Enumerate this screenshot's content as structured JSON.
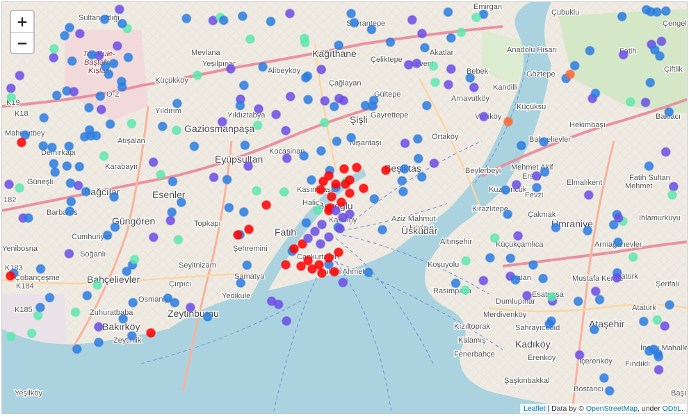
{
  "controls": {
    "zoom_in": "+",
    "zoom_out": "−"
  },
  "attribution": {
    "leaflet": "Leaflet",
    "sep": " | Data by © ",
    "osm": "OpenStreetMap",
    "under": ", under ",
    "odbl": "ODbL",
    "end": "."
  },
  "colors": {
    "red": "#ff0000",
    "blue": "#2a7de1",
    "purple": "#6a4ee6",
    "teal": "#5ee8b0",
    "orange": "#ff6633",
    "water": "#aad3df",
    "land": "#f2efe9"
  },
  "place_labels": [
    "Sultançiftliği",
    "Top Kule-",
    "Baştabya",
    "Kışlası",
    "Mevlana",
    "Kağıthane",
    "Seyrantepe",
    "Çeliktepe",
    "Akatlar",
    "Emirgan",
    "Çubuklu",
    "Çengel",
    "Anadolu Hisarı",
    "Fatih",
    "Levent",
    "Bebek",
    "Alibeyköy",
    "Yeşilpınar",
    "Küçükköy",
    "Çağlayan",
    "Göztepe",
    "Çiftlik",
    "Kandilli",
    "Küçüksu",
    "Gültepe",
    "Yıldırım",
    "Yıldıztabya",
    "Arnavutköy",
    "Vaniköy",
    "Baklacı",
    "Hekimbaşı",
    "Mahmutbey",
    "Gaziosmanpaşa",
    "Şişli",
    "Gayrettepe",
    "Ortaköy",
    "Bahçelievler",
    "Demirkapı",
    "Atışalan",
    "Nişantaşı",
    "Beşiktaş",
    "Fatih Sultan",
    "Mehmet",
    "Eyüpsultan",
    "Kocasinan",
    "Karabayır",
    "Beylerbeyi",
    "Mehmet Akif",
    "Ersoy",
    "Elmalıkent",
    "Güneşli",
    "Bağcılar",
    "Esenler",
    "Kasımpaşa",
    "Kuzguncuk",
    "Fevzi",
    "Çakmak",
    "Barbaros",
    "Topkapı",
    "Beyoğlu",
    "Karaköy",
    "Aziz Mahmut",
    "Hüdayi",
    "Üsküdar",
    "Kirazlıtepe",
    "Ümraniye",
    "Ihlamurkuyu",
    "Güngören",
    "Cumhuriyet",
    "Fatih",
    "Altınşehir",
    "Yenibosna",
    "Soğanlı",
    "Şehremini",
    "Seyitnizam",
    "Cankurtaran",
    "Sultan Ahmet",
    "Koşuyolu",
    "Küçükçamlıca",
    "Armağanevler",
    "Çobançeşme",
    "Bahçelievler",
    "Çırpıcı",
    "Samatya",
    "Yedikule",
    "Rasimpaşa",
    "Ünalan",
    "Mustafa Kemal",
    "Esatpaşa",
    "Şerifali",
    "Osmaniye",
    "Zeytinburnu",
    "Zuhuratbaba",
    "Dumlupınar",
    "Merdivenköy",
    "Bakırköy",
    "Sahrayıcedid",
    "Ataşehir",
    "Atatürk",
    "Kızıltoprak",
    "Kalamış",
    "Kadıköy",
    "Fenerbahçe",
    "Erenköy",
    "Zeytinlik",
    "İçerenköy",
    "Fındıklı",
    "İnönü Mahallesi",
    "Yeşilköy",
    "Şaşkınbakkal",
    "Bostancı",
    "Başı",
    "Haliç",
    "Atatürk",
    "K18",
    "K19",
    "O-2",
    "K183",
    "K184",
    "K185",
    "182"
  ],
  "marker_legend": {
    "red": "red",
    "blue": "blue",
    "purple": "purple",
    "teal": "teal",
    "orange": "orange"
  }
}
